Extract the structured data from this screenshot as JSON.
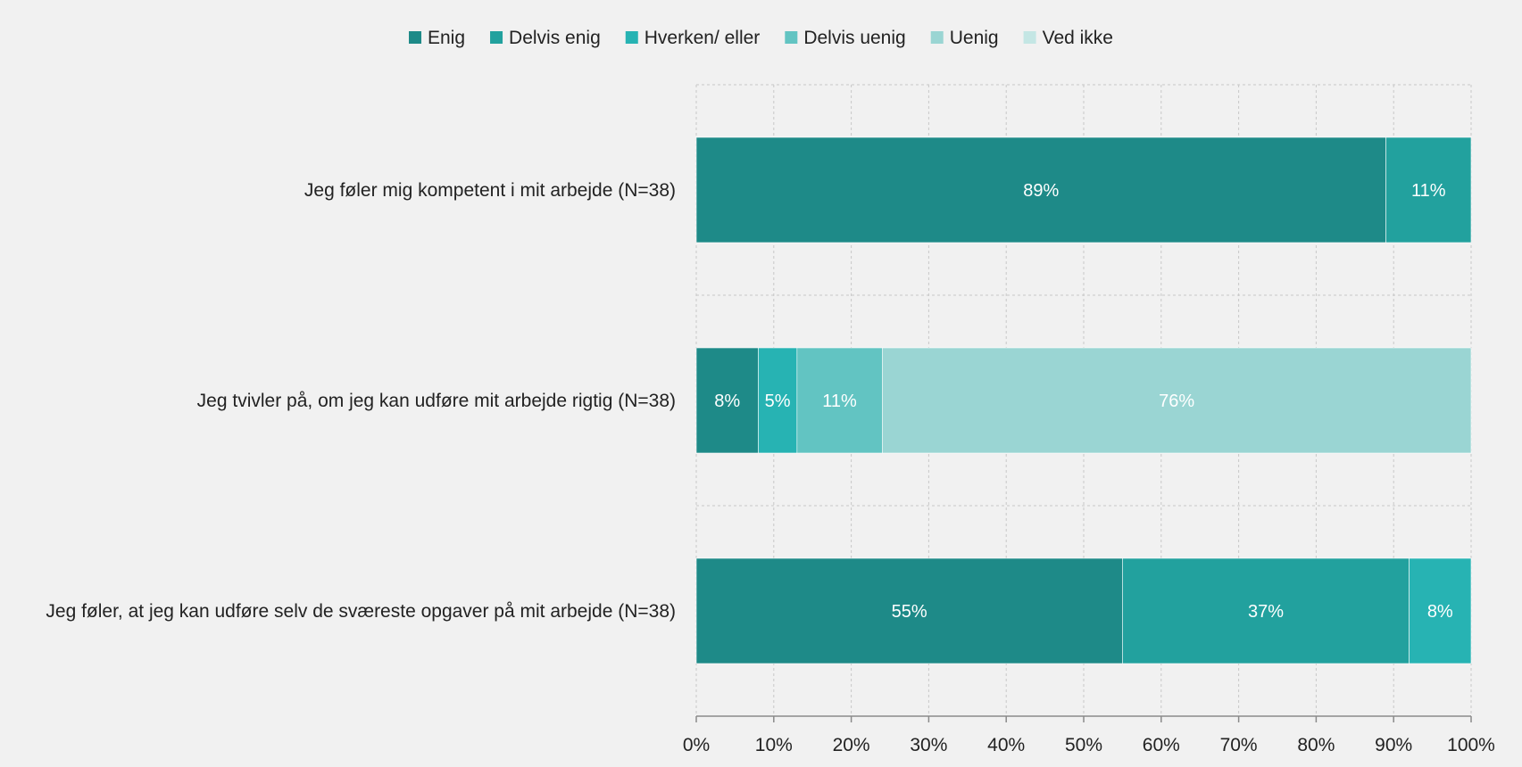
{
  "chart_data": {
    "type": "bar",
    "orientation": "horizontal",
    "stacked": true,
    "categories": [
      "Jeg føler mig kompetent i mit arbejde (N=38)",
      "Jeg tvivler på, om jeg kan udføre mit arbejde rigtig (N=38)",
      "Jeg føler, at jeg kan udføre selv de sværeste opgaver på mit arbejde (N=38)"
    ],
    "series": [
      {
        "name": "Enig",
        "color": "#1e8a88",
        "values": [
          89,
          8,
          55
        ],
        "labels": [
          "89%",
          "8%",
          "55%"
        ]
      },
      {
        "name": "Delvis enig",
        "color": "#22a19e",
        "values": [
          11,
          0,
          37
        ],
        "labels": [
          "11%",
          "",
          "37%"
        ]
      },
      {
        "name": "Hverken/ eller",
        "color": "#27b3b3",
        "values": [
          0,
          5,
          8
        ],
        "labels": [
          "",
          "5%",
          "8%"
        ]
      },
      {
        "name": "Delvis uenig",
        "color": "#62c4c2",
        "values": [
          0,
          11,
          0
        ],
        "labels": [
          "",
          "11%",
          ""
        ]
      },
      {
        "name": "Uenig",
        "color": "#9ad5d3",
        "values": [
          0,
          76,
          0
        ],
        "labels": [
          "",
          "76%",
          ""
        ]
      },
      {
        "name": "Ved ikke",
        "color": "#c4e6e4",
        "values": [
          0,
          0,
          0
        ],
        "labels": [
          "",
          "",
          ""
        ]
      }
    ],
    "xlim": [
      0,
      100
    ],
    "xticks": [
      "0%",
      "10%",
      "20%",
      "30%",
      "40%",
      "50%",
      "60%",
      "70%",
      "80%",
      "90%",
      "100%"
    ],
    "legend_position": "top",
    "grid": "dashed vertical and horizontal"
  }
}
